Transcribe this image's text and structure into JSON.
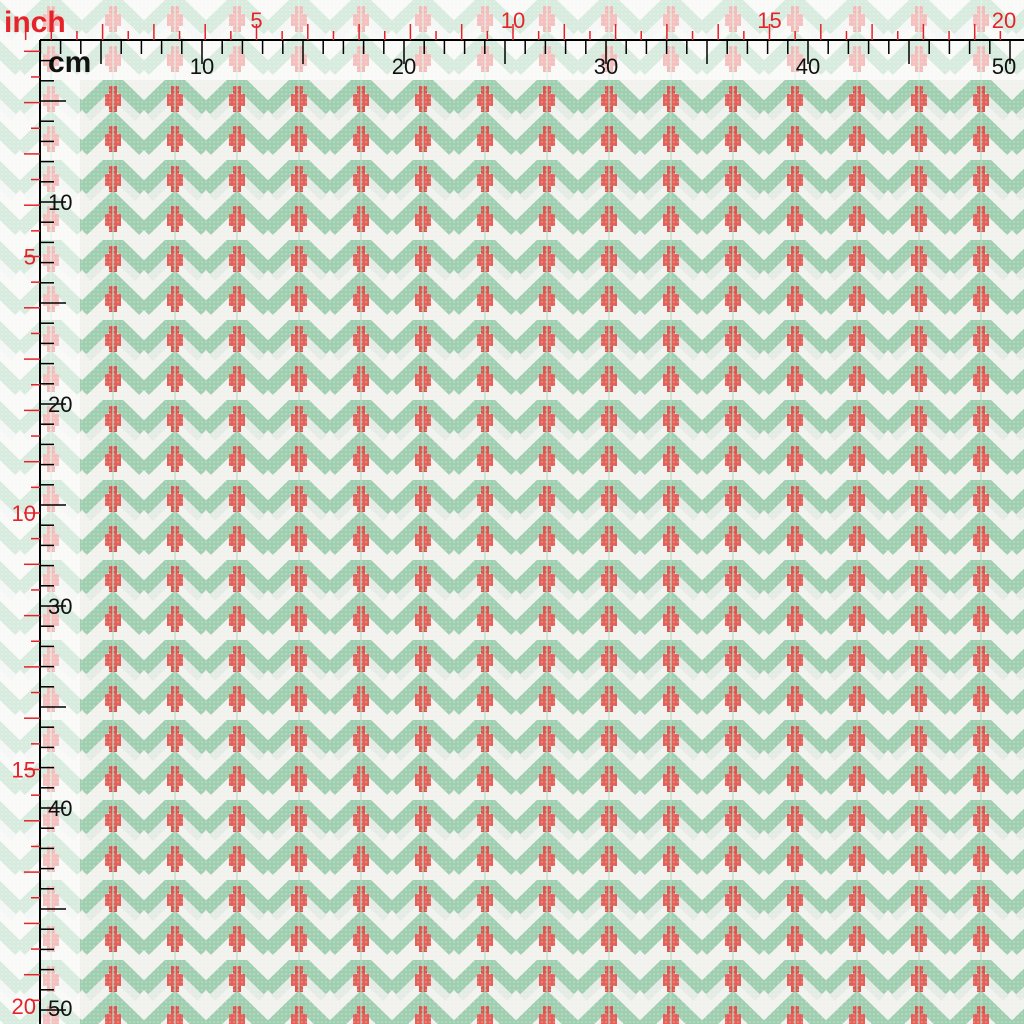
{
  "rulers": {
    "top": {
      "unit_label": "inch",
      "labels": [
        "5",
        "10",
        "15",
        "20"
      ]
    },
    "top_cm": {
      "unit_label": "cm",
      "labels": [
        "10",
        "20",
        "30",
        "40",
        "50"
      ]
    },
    "left_cm": {
      "labels": [
        "10",
        "20",
        "30",
        "40",
        "50"
      ]
    },
    "left_inch": {
      "labels": [
        "5",
        "10",
        "15",
        "20"
      ]
    }
  }
}
